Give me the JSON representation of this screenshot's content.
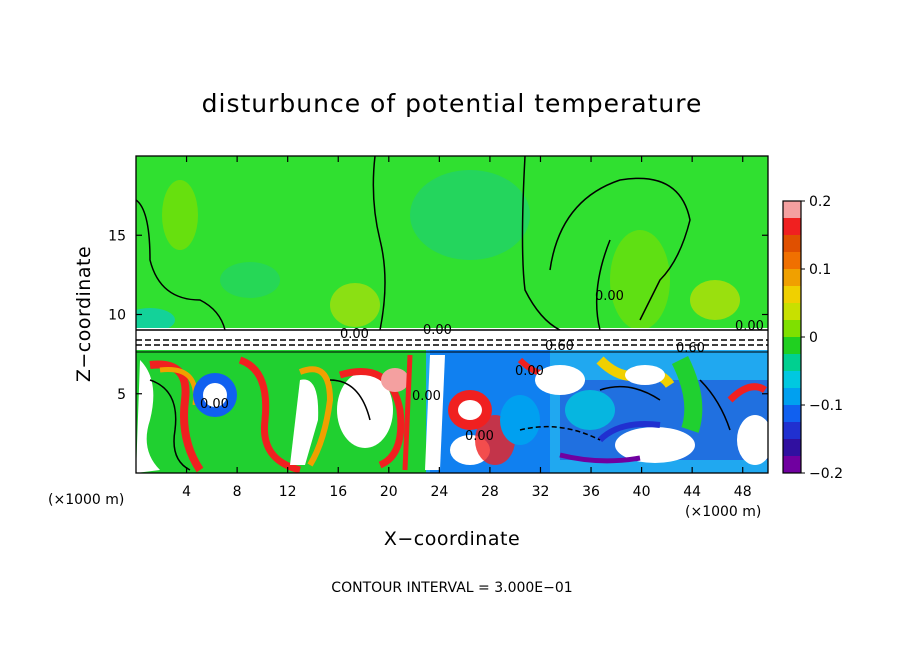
{
  "chart_data": {
    "type": "heatmap",
    "title": "disturbunce of potential temperature",
    "xlabel": "X−coordinate",
    "ylabel": "Z−coordinate",
    "x_unit": "(×1000 m)",
    "y_unit": "(×1000 m)",
    "xlim": [
      0,
      50
    ],
    "ylim": [
      0,
      20
    ],
    "x_ticks": [
      4,
      8,
      12,
      16,
      20,
      24,
      28,
      32,
      36,
      40,
      44,
      48
    ],
    "y_ticks": [
      5,
      10,
      15
    ],
    "x_tick_labels": [
      "4",
      "8",
      "12",
      "16",
      "20",
      "24",
      "28",
      "32",
      "36",
      "40",
      "44",
      "48"
    ],
    "y_tick_labels": [
      "5",
      "10",
      "15"
    ],
    "grid": false,
    "colorbar": {
      "position": "right",
      "range": [
        -0.2,
        0.2
      ],
      "tick_labels": [
        "0.2",
        "0.1",
        "0",
        "−0.1",
        "−0.2"
      ],
      "tick_values": [
        0.2,
        0.1,
        0,
        -0.1,
        -0.2
      ],
      "colors": [
        "#f4a0a0",
        "#f02020",
        "#e05000",
        "#f07000",
        "#f0a000",
        "#f0d000",
        "#c8e000",
        "#7fe000",
        "#20d020",
        "#00d090",
        "#00c8e0",
        "#00a0f0",
        "#1060f0",
        "#2030d0",
        "#3010a0",
        "#7000a0"
      ]
    },
    "contour_labels": [
      "0.00",
      "0.00",
      "0.00",
      "0.60",
      "0.60",
      "0.00",
      "0.00",
      "0.00",
      "0.00",
      "0.00"
    ],
    "footer": "CONTOUR INTERVAL = 3.000E−01"
  }
}
